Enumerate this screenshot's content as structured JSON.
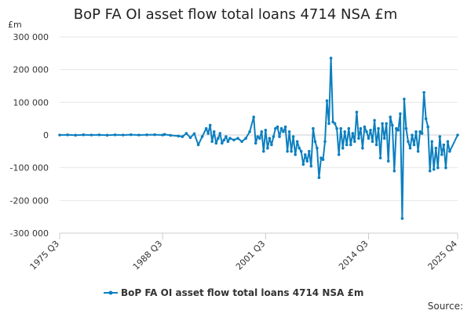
{
  "chart_data": {
    "type": "line",
    "title": "BoP FA OI asset flow total loans 4714 NSA £m",
    "ylabel": "£m",
    "xlabel": "",
    "ylim": [
      -300000,
      300000
    ],
    "y_ticks": [
      "300 000",
      "200 000",
      "100 000",
      "0",
      "-100 000",
      "-200 000",
      "-300 000"
    ],
    "y_tick_values": [
      300000,
      200000,
      100000,
      0,
      -100000,
      -200000,
      -300000
    ],
    "x_range": [
      "1975 Q3",
      "2025 Q4"
    ],
    "x_ticks": [
      "1975 Q3",
      "1988 Q3",
      "2001 Q3",
      "2014 Q3",
      "2025 Q4"
    ],
    "grid": "horizontal",
    "legend_position": "bottom",
    "source_label": "Source:",
    "series": [
      {
        "name": "BoP FA OI asset flow total loans 4714 NSA £m",
        "color": "#0c7fbf",
        "points": [
          [
            "1975 Q3",
            0
          ],
          [
            "1976 Q3",
            500
          ],
          [
            "1977 Q3",
            -500
          ],
          [
            "1978 Q3",
            800
          ],
          [
            "1979 Q3",
            0
          ],
          [
            "1980 Q3",
            500
          ],
          [
            "1981 Q3",
            -500
          ],
          [
            "1982 Q3",
            500
          ],
          [
            "1983 Q3",
            0
          ],
          [
            "1984 Q3",
            1000
          ],
          [
            "1985 Q3",
            0
          ],
          [
            "1986 Q3",
            500
          ],
          [
            "1987 Q3",
            1000
          ],
          [
            "1988 Q3",
            0
          ],
          [
            "1988 Q4",
            2000
          ],
          [
            "1989 Q3",
            -1000
          ],
          [
            "1990 Q3",
            -3000
          ],
          [
            "1991 Q1",
            -5000
          ],
          [
            "1991 Q3",
            5000
          ],
          [
            "1992 Q1",
            -8000
          ],
          [
            "1992 Q3",
            4000
          ],
          [
            "1993 Q1",
            -30000
          ],
          [
            "1993 Q3",
            -5000
          ],
          [
            "1994 Q1",
            20000
          ],
          [
            "1994 Q2",
            5000
          ],
          [
            "1994 Q3",
            30000
          ],
          [
            "1994 Q4",
            -20000
          ],
          [
            "1995 Q1",
            10000
          ],
          [
            "1995 Q2",
            -25000
          ],
          [
            "1995 Q3",
            -10000
          ],
          [
            "1995 Q4",
            5000
          ],
          [
            "1996 Q1",
            -25000
          ],
          [
            "1996 Q2",
            -15000
          ],
          [
            "1996 Q3",
            -5000
          ],
          [
            "1996 Q4",
            -20000
          ],
          [
            "1997 Q1",
            -10000
          ],
          [
            "1997 Q3",
            -15000
          ],
          [
            "1998 Q1",
            -10000
          ],
          [
            "1998 Q3",
            -20000
          ],
          [
            "1999 Q1",
            -10000
          ],
          [
            "1999 Q3",
            10000
          ],
          [
            "2000 Q1",
            55000
          ],
          [
            "2000 Q2",
            -25000
          ],
          [
            "2000 Q3",
            -5000
          ],
          [
            "2000 Q4",
            -10000
          ],
          [
            "2001 Q1",
            10000
          ],
          [
            "2001 Q2",
            -50000
          ],
          [
            "2001 Q3",
            15000
          ],
          [
            "2001 Q4",
            -40000
          ],
          [
            "2002 Q1",
            -10000
          ],
          [
            "2002 Q2",
            -30000
          ],
          [
            "2002 Q3",
            -5000
          ],
          [
            "2002 Q4",
            20000
          ],
          [
            "2003 Q1",
            25000
          ],
          [
            "2003 Q2",
            -5000
          ],
          [
            "2003 Q3",
            20000
          ],
          [
            "2003 Q4",
            10000
          ],
          [
            "2004 Q1",
            25000
          ],
          [
            "2004 Q2",
            -50000
          ],
          [
            "2004 Q3",
            10000
          ],
          [
            "2004 Q4",
            -50000
          ],
          [
            "2005 Q1",
            -5000
          ],
          [
            "2005 Q2",
            -60000
          ],
          [
            "2005 Q3",
            -20000
          ],
          [
            "2005 Q4",
            -40000
          ],
          [
            "2006 Q1",
            -50000
          ],
          [
            "2006 Q2",
            -90000
          ],
          [
            "2006 Q3",
            -60000
          ],
          [
            "2006 Q4",
            -80000
          ],
          [
            "2007 Q1",
            -50000
          ],
          [
            "2007 Q2",
            -95000
          ],
          [
            "2007 Q3",
            20000
          ],
          [
            "2007 Q4",
            -20000
          ],
          [
            "2008 Q1",
            -40000
          ],
          [
            "2008 Q2",
            -130000
          ],
          [
            "2008 Q3",
            -70000
          ],
          [
            "2008 Q4",
            -75000
          ],
          [
            "2009 Q1",
            -20000
          ],
          [
            "2009 Q2",
            105000
          ],
          [
            "2009 Q3",
            35000
          ],
          [
            "2009 Q4",
            235000
          ],
          [
            "2010 Q1",
            40000
          ],
          [
            "2010 Q2",
            35000
          ],
          [
            "2010 Q3",
            20000
          ],
          [
            "2010 Q4",
            -60000
          ],
          [
            "2011 Q1",
            20000
          ],
          [
            "2011 Q2",
            -40000
          ],
          [
            "2011 Q3",
            10000
          ],
          [
            "2011 Q4",
            -30000
          ],
          [
            "2012 Q1",
            20000
          ],
          [
            "2012 Q2",
            -30000
          ],
          [
            "2012 Q3",
            5000
          ],
          [
            "2012 Q4",
            -20000
          ],
          [
            "2013 Q1",
            70000
          ],
          [
            "2013 Q2",
            -10000
          ],
          [
            "2013 Q3",
            20000
          ],
          [
            "2013 Q4",
            -40000
          ],
          [
            "2014 Q1",
            25000
          ],
          [
            "2014 Q2",
            10000
          ],
          [
            "2014 Q3",
            -10000
          ],
          [
            "2014 Q4",
            15000
          ],
          [
            "2015 Q1",
            -20000
          ],
          [
            "2015 Q2",
            45000
          ],
          [
            "2015 Q3",
            -30000
          ],
          [
            "2015 Q4",
            20000
          ],
          [
            "2016 Q1",
            -70000
          ],
          [
            "2016 Q2",
            35000
          ],
          [
            "2016 Q3",
            -10000
          ],
          [
            "2016 Q4",
            35000
          ],
          [
            "2017 Q1",
            -80000
          ],
          [
            "2017 Q2",
            55000
          ],
          [
            "2017 Q3",
            30000
          ],
          [
            "2017 Q4",
            -110000
          ],
          [
            "2018 Q1",
            20000
          ],
          [
            "2018 Q2",
            15000
          ],
          [
            "2018 Q3",
            65000
          ],
          [
            "2018 Q4",
            -255000
          ],
          [
            "2019 Q1",
            110000
          ],
          [
            "2019 Q2",
            20000
          ],
          [
            "2019 Q3",
            -20000
          ],
          [
            "2019 Q4",
            -40000
          ],
          [
            "2020 Q1",
            0
          ],
          [
            "2020 Q2",
            -30000
          ],
          [
            "2020 Q3",
            10000
          ],
          [
            "2020 Q4",
            -50000
          ],
          [
            "2021 Q1",
            10000
          ],
          [
            "2021 Q2",
            5000
          ],
          [
            "2021 Q3",
            130000
          ],
          [
            "2021 Q4",
            50000
          ],
          [
            "2022 Q1",
            25000
          ],
          [
            "2022 Q2",
            -110000
          ],
          [
            "2022 Q3",
            -20000
          ],
          [
            "2022 Q4",
            -105000
          ],
          [
            "2023 Q1",
            -40000
          ],
          [
            "2023 Q2",
            -100000
          ],
          [
            "2023 Q3",
            -5000
          ],
          [
            "2023 Q4",
            -60000
          ],
          [
            "2024 Q1",
            -30000
          ],
          [
            "2024 Q2",
            -100000
          ],
          [
            "2024 Q3",
            -20000
          ],
          [
            "2024 Q4",
            -50000
          ],
          [
            "2025 Q4",
            0
          ]
        ]
      }
    ]
  }
}
